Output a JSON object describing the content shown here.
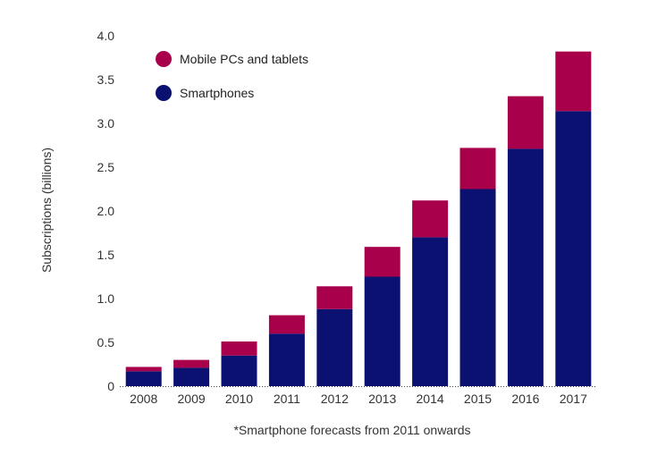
{
  "chart_data": {
    "type": "bar",
    "stacked": true,
    "title": "",
    "xlabel": "",
    "ylabel": "Subscriptions (billions)",
    "footnote": "*Smartphone forecasts from 2011 onwards",
    "categories": [
      "2008",
      "2009",
      "2010",
      "2011",
      "2012",
      "2013",
      "2014",
      "2015",
      "2016",
      "2017"
    ],
    "series": [
      {
        "name": "Smartphones",
        "color": "#0b1170",
        "values": [
          0.17,
          0.21,
          0.35,
          0.6,
          0.88,
          1.25,
          1.7,
          2.25,
          2.71,
          3.14
        ]
      },
      {
        "name": "Mobile PCs and tablets",
        "color": "#a8004b",
        "values": [
          0.05,
          0.09,
          0.16,
          0.21,
          0.26,
          0.34,
          0.42,
          0.47,
          0.6,
          0.68
        ]
      }
    ],
    "legend": [
      {
        "label": "Mobile PCs and tablets",
        "color": "#a8004b"
      },
      {
        "label": "Smartphones",
        "color": "#0b1170"
      }
    ],
    "ylim": [
      0,
      4.0
    ],
    "yticks": [
      "0",
      "0.5",
      "1.0",
      "1.5",
      "2.0",
      "2.5",
      "3.0",
      "3.5",
      "4.0"
    ],
    "legend_position": "top-left",
    "grid": false
  }
}
